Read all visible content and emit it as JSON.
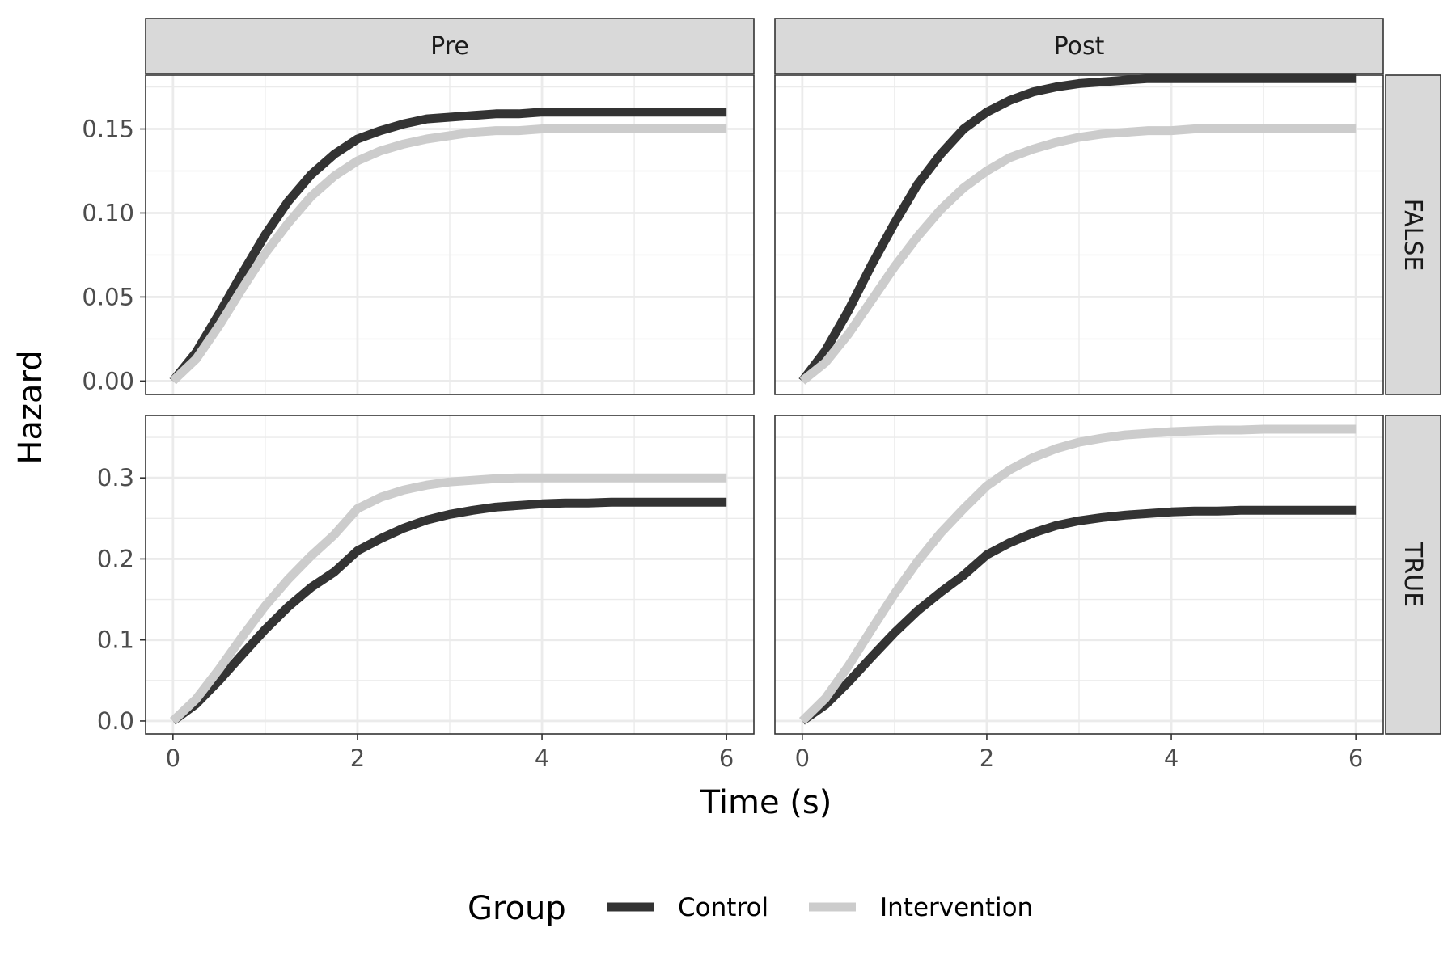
{
  "chart_data": {
    "type": "line",
    "facet_columns": [
      "Pre",
      "Post"
    ],
    "facet_rows": [
      "FALSE",
      "TRUE"
    ],
    "xlabel": "Time (s)",
    "ylabel": "Hazard",
    "xlim": [
      0,
      6
    ],
    "x_ticks": [
      "0",
      "2",
      "4",
      "6"
    ],
    "y_ticks_by_row": [
      [
        "0.00",
        "0.05",
        "0.10",
        "0.15"
      ],
      [
        "0.0",
        "0.1",
        "0.2",
        "0.3"
      ]
    ],
    "ylim_by_row": [
      [
        -0.008,
        0.182
      ],
      [
        -0.016,
        0.377
      ]
    ],
    "grid": true,
    "legend": {
      "title": "Group",
      "position": "bottom",
      "entries": [
        {
          "name": "Control",
          "color": "#333333"
        },
        {
          "name": "Intervention",
          "color": "#cccccc"
        }
      ]
    },
    "x": [
      0,
      0.25,
      0.5,
      0.75,
      1,
      1.25,
      1.5,
      1.75,
      2,
      2.25,
      2.5,
      2.75,
      3,
      3.25,
      3.5,
      3.75,
      4,
      4.25,
      4.5,
      4.75,
      5,
      5.25,
      5.5,
      5.75,
      6
    ],
    "panels": [
      {
        "column": "Pre",
        "row": "FALSE",
        "series": [
          {
            "name": "Control",
            "values": [
              0.0,
              0.017,
              0.04,
              0.064,
              0.087,
              0.107,
              0.123,
              0.135,
              0.144,
              0.149,
              0.153,
              0.156,
              0.157,
              0.158,
              0.159,
              0.159,
              0.16,
              0.16,
              0.16,
              0.16,
              0.16,
              0.16,
              0.16,
              0.16,
              0.16
            ]
          },
          {
            "name": "Intervention",
            "values": [
              0.0,
              0.013,
              0.033,
              0.055,
              0.076,
              0.094,
              0.11,
              0.122,
              0.131,
              0.137,
              0.141,
              0.144,
              0.146,
              0.148,
              0.149,
              0.149,
              0.15,
              0.15,
              0.15,
              0.15,
              0.15,
              0.15,
              0.15,
              0.15,
              0.15
            ]
          }
        ]
      },
      {
        "column": "Post",
        "row": "FALSE",
        "series": [
          {
            "name": "Control",
            "values": [
              0.0,
              0.018,
              0.042,
              0.069,
              0.094,
              0.117,
              0.135,
              0.15,
              0.16,
              0.167,
              0.172,
              0.175,
              0.177,
              0.178,
              0.179,
              0.18,
              0.18,
              0.18,
              0.18,
              0.18,
              0.18,
              0.18,
              0.18,
              0.18,
              0.18
            ]
          },
          {
            "name": "Intervention",
            "values": [
              0.0,
              0.011,
              0.028,
              0.048,
              0.068,
              0.086,
              0.102,
              0.115,
              0.125,
              0.133,
              0.138,
              0.142,
              0.145,
              0.147,
              0.148,
              0.149,
              0.149,
              0.15,
              0.15,
              0.15,
              0.15,
              0.15,
              0.15,
              0.15,
              0.15
            ]
          }
        ]
      },
      {
        "column": "Pre",
        "row": "TRUE",
        "series": [
          {
            "name": "Control",
            "values": [
              0.0,
              0.021,
              0.05,
              0.082,
              0.113,
              0.141,
              0.165,
              0.184,
              0.21,
              0.225,
              0.238,
              0.248,
              0.255,
              0.26,
              0.264,
              0.266,
              0.268,
              0.269,
              0.269,
              0.27,
              0.27,
              0.27,
              0.27,
              0.27,
              0.27
            ]
          },
          {
            "name": "Intervention",
            "values": [
              0.0,
              0.027,
              0.064,
              0.104,
              0.142,
              0.175,
              0.204,
              0.23,
              0.262,
              0.276,
              0.285,
              0.291,
              0.295,
              0.297,
              0.299,
              0.3,
              0.3,
              0.3,
              0.3,
              0.3,
              0.3,
              0.3,
              0.3,
              0.3,
              0.3
            ]
          }
        ]
      },
      {
        "column": "Post",
        "row": "TRUE",
        "series": [
          {
            "name": "Control",
            "values": [
              0.0,
              0.02,
              0.048,
              0.079,
              0.109,
              0.136,
              0.159,
              0.18,
              0.205,
              0.22,
              0.232,
              0.241,
              0.247,
              0.251,
              0.254,
              0.256,
              0.258,
              0.259,
              0.259,
              0.26,
              0.26,
              0.26,
              0.26,
              0.26,
              0.26
            ]
          },
          {
            "name": "Intervention",
            "values": [
              0.0,
              0.028,
              0.068,
              0.113,
              0.157,
              0.197,
              0.232,
              0.262,
              0.29,
              0.31,
              0.325,
              0.336,
              0.344,
              0.349,
              0.353,
              0.355,
              0.357,
              0.358,
              0.359,
              0.359,
              0.36,
              0.36,
              0.36,
              0.36,
              0.36
            ]
          }
        ]
      }
    ]
  }
}
